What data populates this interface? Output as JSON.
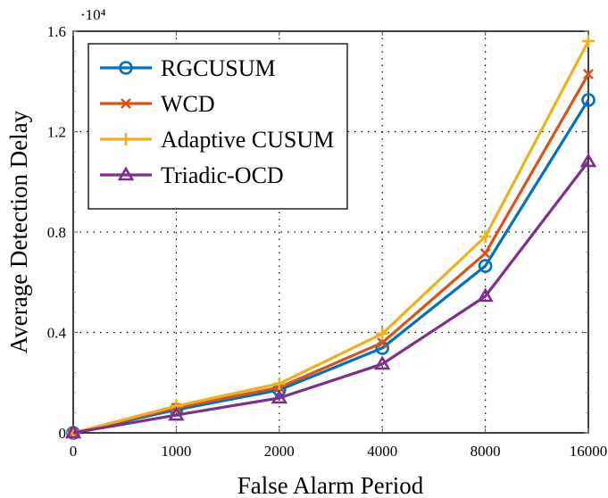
{
  "chart_data": {
    "type": "line",
    "title": "",
    "xlabel": "False Alarm Period",
    "ylabel": "Average Detection Delay",
    "y_scale_label": "·10⁴",
    "y_multiplier": 10000,
    "categories": [
      "0",
      "1000",
      "2000",
      "4000",
      "8000",
      "16000"
    ],
    "x": [
      0,
      1000,
      2000,
      4000,
      8000,
      16000
    ],
    "ylim": [
      0,
      1.6
    ],
    "yticks": [
      0,
      0.4,
      0.8,
      1.2,
      1.6
    ],
    "ytick_labels": [
      "0",
      "0.4",
      "0.8",
      "1.2",
      "1.6"
    ],
    "grid": "dotted",
    "legend_position": "upper left",
    "series": [
      {
        "name": "RGCUSUM",
        "color": "#0072BD",
        "marker": "circle",
        "values": [
          0,
          0.092,
          0.171,
          0.338,
          0.665,
          1.326
        ]
      },
      {
        "name": "WCD",
        "color": "#D95319",
        "marker": "x",
        "values": [
          0,
          0.1,
          0.181,
          0.359,
          0.715,
          1.429
        ]
      },
      {
        "name": "Adaptive CUSUM",
        "color": "#EDB120",
        "marker": "plus",
        "values": [
          0,
          0.107,
          0.196,
          0.395,
          0.782,
          1.561
        ]
      },
      {
        "name": "Triadic-OCD",
        "color": "#7E2F8E",
        "marker": "triangle",
        "values": [
          0,
          0.071,
          0.139,
          0.274,
          0.544,
          1.081
        ]
      }
    ]
  }
}
